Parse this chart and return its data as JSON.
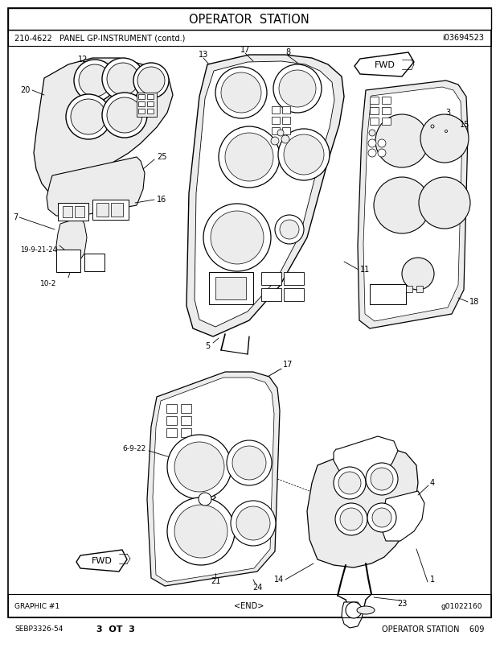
{
  "title": "OPERATOR  STATION",
  "subtitle_left": "210-4622   PANEL GP-INSTRUMENT (contd.)",
  "subtitle_right": "i03694523",
  "footer_left": "GRAPHIC #1",
  "footer_center": "<END>",
  "footer_right": "g01022160",
  "bottom_left": "SEBP3326-54",
  "bottom_center": "3  OT  3",
  "bottom_right": "OPERATOR STATION    609",
  "bg_color": "#ffffff",
  "line_color": "#000000",
  "gray_fill": "#d8d8d8",
  "light_gray": "#ececec"
}
